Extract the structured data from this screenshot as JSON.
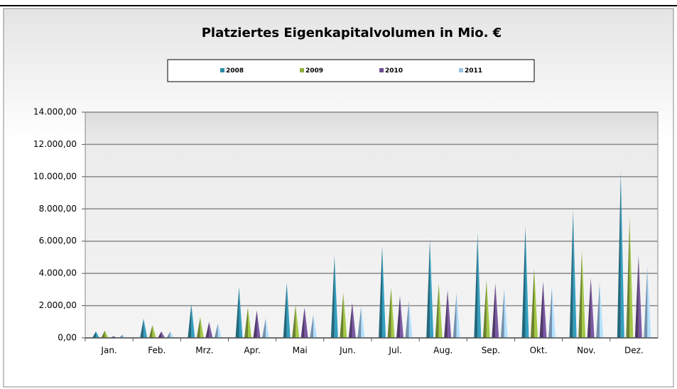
{
  "chart_data": {
    "type": "bar",
    "title": "Platziertes Eigenkapitalvolumen in Mio. €",
    "categories": [
      "Jan.",
      "Feb.",
      "Mrz.",
      "Apr.",
      "Mai",
      "Jun.",
      "Jul.",
      "Aug.",
      "Sep.",
      "Okt.",
      "Nov.",
      "Dez."
    ],
    "series": [
      {
        "name": "2008",
        "color": "#2e8aa6",
        "values": [
          400,
          1200,
          2100,
          3150,
          3450,
          5100,
          5700,
          6150,
          6500,
          6900,
          7950,
          10350
        ]
      },
      {
        "name": "2009",
        "color": "#8fae3e",
        "values": [
          450,
          800,
          1300,
          1900,
          2050,
          2800,
          3100,
          3400,
          3600,
          4300,
          5450,
          7500
        ]
      },
      {
        "name": "2010",
        "color": "#6b4d8e",
        "values": [
          100,
          400,
          1000,
          1700,
          1900,
          2200,
          2600,
          3000,
          3400,
          3500,
          3750,
          5150
        ]
      },
      {
        "name": "2011",
        "color": "#9cc3e6",
        "values": [
          200,
          400,
          900,
          1200,
          1450,
          1950,
          2300,
          2800,
          3050,
          3150,
          3450,
          4450
        ]
      }
    ],
    "ylim": [
      0,
      14000
    ],
    "yticks": [
      {
        "value": 0,
        "label": "0,00"
      },
      {
        "value": 2000,
        "label": "2.000,00"
      },
      {
        "value": 4000,
        "label": "4.000,00"
      },
      {
        "value": 6000,
        "label": "6.000,00"
      },
      {
        "value": 8000,
        "label": "8.000,00"
      },
      {
        "value": 10000,
        "label": "10.000,00"
      },
      {
        "value": 12000,
        "label": "12.000,00"
      },
      {
        "value": 14000,
        "label": "14.000,00"
      }
    ],
    "grid": true,
    "legend": "top"
  }
}
